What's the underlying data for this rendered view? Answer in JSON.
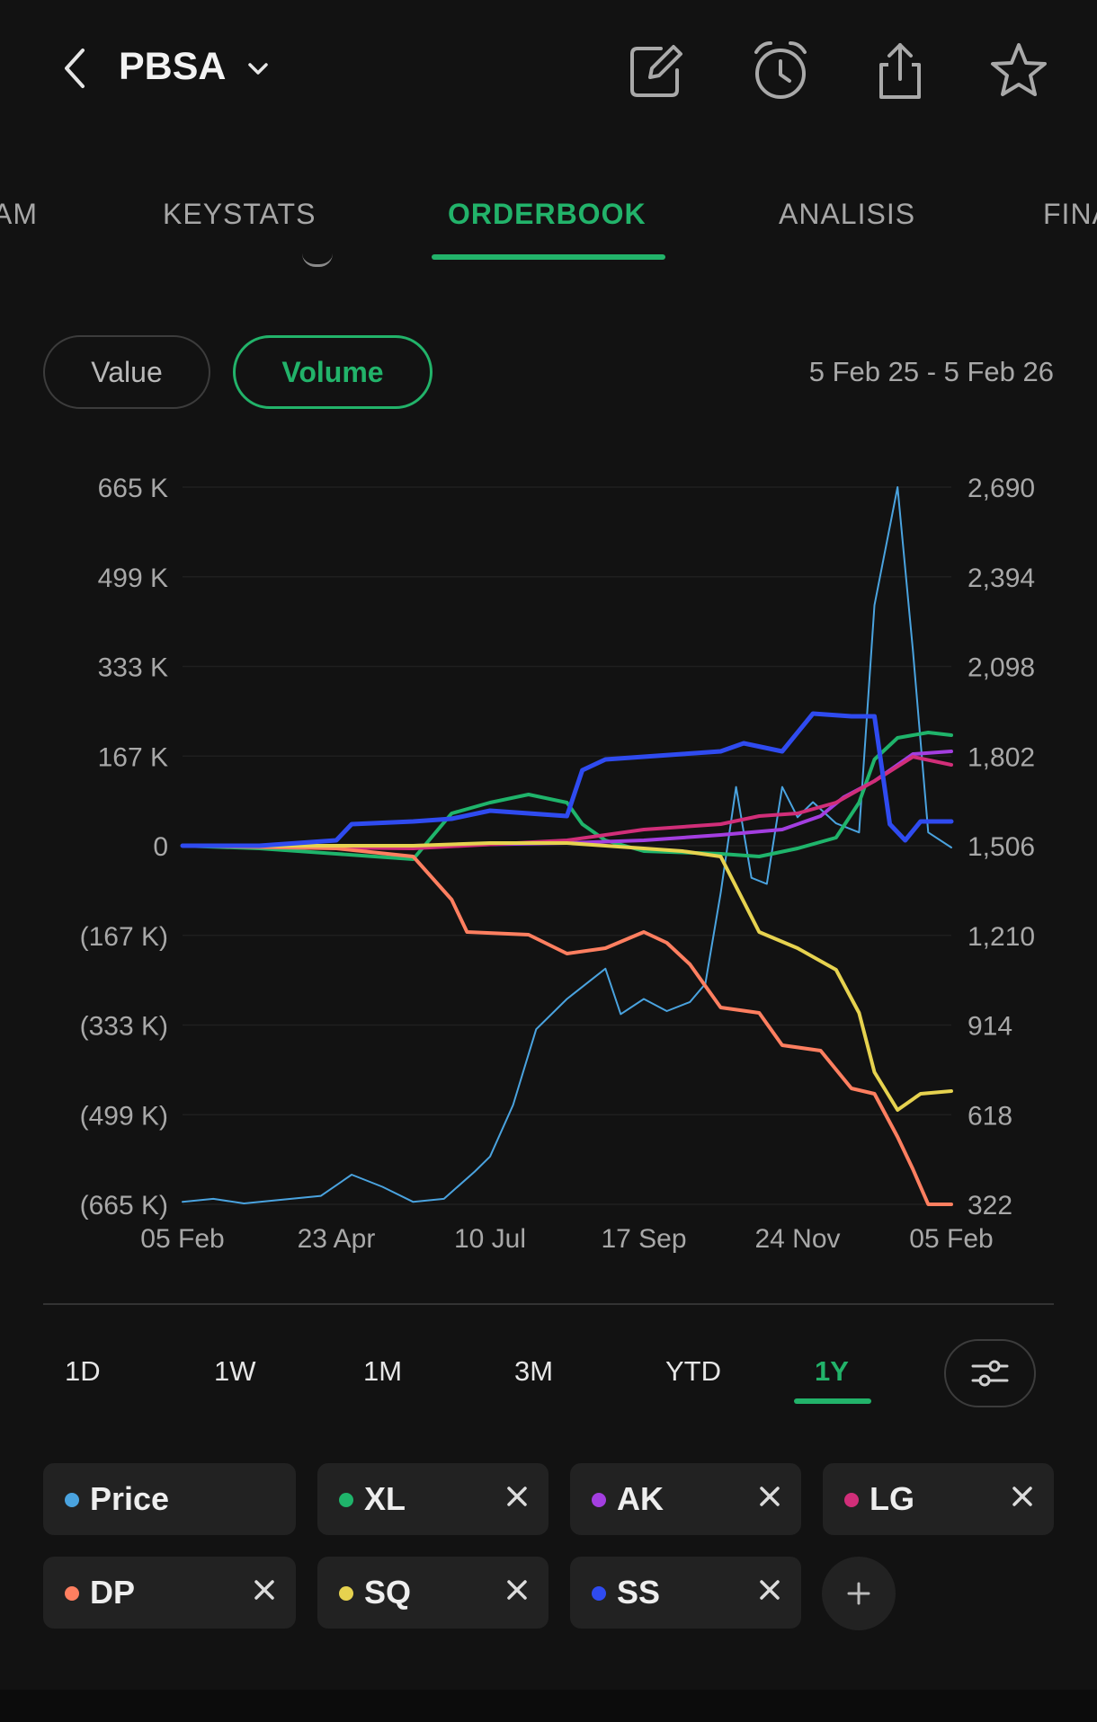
{
  "header": {
    "title": "PBSA",
    "icons": [
      "chevron-left-icon",
      "chevron-down-icon",
      "edit-icon",
      "alarm-icon",
      "share-icon",
      "star-icon"
    ]
  },
  "tabs": [
    {
      "label": "AM",
      "active": false
    },
    {
      "label": "KEYSTATS",
      "active": false
    },
    {
      "label": "ORDERBOOK",
      "active": true
    },
    {
      "label": "ANALISIS",
      "active": false
    },
    {
      "label": "FINA",
      "active": false
    }
  ],
  "toggle": {
    "value_label": "Value",
    "volume_label": "Volume",
    "selected": "Volume"
  },
  "date_range": "5 Feb 25 - 5 Feb 26",
  "ranges": [
    {
      "label": "1D",
      "active": false
    },
    {
      "label": "1W",
      "active": false
    },
    {
      "label": "1M",
      "active": false
    },
    {
      "label": "3M",
      "active": false
    },
    {
      "label": "YTD",
      "active": false
    },
    {
      "label": "1Y",
      "active": true
    }
  ],
  "legend": [
    {
      "label": "Price",
      "color": "#4aa3df",
      "removable": false
    },
    {
      "label": "XL",
      "color": "#1fb46b",
      "removable": true
    },
    {
      "label": "AK",
      "color": "#a33ee0",
      "removable": true
    },
    {
      "label": "LG",
      "color": "#d12e79",
      "removable": true
    },
    {
      "label": "DP",
      "color": "#ff7f60",
      "removable": true
    },
    {
      "label": "SQ",
      "color": "#e6d24f",
      "removable": true
    },
    {
      "label": "SS",
      "color": "#2f4bf0",
      "removable": true
    }
  ],
  "chart_data": {
    "type": "line",
    "x_ticks": [
      "05 Feb",
      "23 Apr",
      "10 Jul",
      "17 Sep",
      "24 Nov",
      "05 Feb"
    ],
    "left_ticks": [
      "665 K",
      "499 K",
      "333 K",
      "167 K",
      "0",
      "(167 K)",
      "(333 K)",
      "(499 K)",
      "(665 K)"
    ],
    "right_ticks": [
      "2,690",
      "2,394",
      "2,098",
      "1,802",
      "1,506",
      "1,210",
      "914",
      "618",
      "322"
    ],
    "ylim_left": [
      -665,
      665
    ],
    "ylim_right": [
      322,
      2690
    ],
    "left_unit": "K",
    "grid": true,
    "series": [
      {
        "name": "Price",
        "axis": "right",
        "color": "#4aa3df",
        "width": 2,
        "points": [
          [
            0,
            330
          ],
          [
            0.04,
            340
          ],
          [
            0.08,
            325
          ],
          [
            0.12,
            335
          ],
          [
            0.18,
            350
          ],
          [
            0.22,
            420
          ],
          [
            0.26,
            380
          ],
          [
            0.3,
            330
          ],
          [
            0.34,
            340
          ],
          [
            0.38,
            430
          ],
          [
            0.4,
            480
          ],
          [
            0.43,
            650
          ],
          [
            0.46,
            900
          ],
          [
            0.5,
            1000
          ],
          [
            0.55,
            1100
          ],
          [
            0.57,
            950
          ],
          [
            0.6,
            1000
          ],
          [
            0.63,
            960
          ],
          [
            0.66,
            990
          ],
          [
            0.68,
            1050
          ],
          [
            0.7,
            1350
          ],
          [
            0.72,
            1700
          ],
          [
            0.74,
            1400
          ],
          [
            0.76,
            1380
          ],
          [
            0.78,
            1700
          ],
          [
            0.8,
            1600
          ],
          [
            0.82,
            1650
          ],
          [
            0.85,
            1580
          ],
          [
            0.88,
            1550
          ],
          [
            0.9,
            2300
          ],
          [
            0.93,
            2690
          ],
          [
            0.95,
            2150
          ],
          [
            0.97,
            1550
          ],
          [
            1.0,
            1500
          ]
        ]
      },
      {
        "name": "XL",
        "axis": "left",
        "color": "#1fb46b",
        "width": 4,
        "points": [
          [
            0,
            0
          ],
          [
            0.1,
            -5
          ],
          [
            0.2,
            -15
          ],
          [
            0.3,
            -25
          ],
          [
            0.35,
            60
          ],
          [
            0.4,
            80
          ],
          [
            0.45,
            95
          ],
          [
            0.5,
            80
          ],
          [
            0.52,
            40
          ],
          [
            0.55,
            10
          ],
          [
            0.6,
            -10
          ],
          [
            0.7,
            -15
          ],
          [
            0.75,
            -20
          ],
          [
            0.8,
            -5
          ],
          [
            0.85,
            15
          ],
          [
            0.88,
            80
          ],
          [
            0.9,
            160
          ],
          [
            0.93,
            200
          ],
          [
            0.97,
            210
          ],
          [
            1.0,
            205
          ]
        ]
      },
      {
        "name": "AK",
        "axis": "left",
        "color": "#a33ee0",
        "width": 4,
        "points": [
          [
            0,
            0
          ],
          [
            0.3,
            0
          ],
          [
            0.5,
            5
          ],
          [
            0.6,
            10
          ],
          [
            0.7,
            20
          ],
          [
            0.78,
            30
          ],
          [
            0.83,
            55
          ],
          [
            0.86,
            90
          ],
          [
            0.9,
            120
          ],
          [
            0.95,
            170
          ],
          [
            1.0,
            175
          ]
        ]
      },
      {
        "name": "LG",
        "axis": "left",
        "color": "#d12e79",
        "width": 4,
        "points": [
          [
            0,
            0
          ],
          [
            0.3,
            -5
          ],
          [
            0.5,
            10
          ],
          [
            0.6,
            30
          ],
          [
            0.7,
            40
          ],
          [
            0.75,
            55
          ],
          [
            0.8,
            60
          ],
          [
            0.85,
            80
          ],
          [
            0.9,
            120
          ],
          [
            0.95,
            165
          ],
          [
            1.0,
            150
          ]
        ]
      },
      {
        "name": "DP",
        "axis": "left",
        "color": "#ff7f60",
        "width": 4,
        "points": [
          [
            0,
            0
          ],
          [
            0.2,
            -5
          ],
          [
            0.3,
            -20
          ],
          [
            0.35,
            -100
          ],
          [
            0.37,
            -160
          ],
          [
            0.45,
            -165
          ],
          [
            0.5,
            -200
          ],
          [
            0.55,
            -190
          ],
          [
            0.6,
            -160
          ],
          [
            0.63,
            -180
          ],
          [
            0.66,
            -220
          ],
          [
            0.7,
            -300
          ],
          [
            0.75,
            -310
          ],
          [
            0.78,
            -370
          ],
          [
            0.83,
            -380
          ],
          [
            0.87,
            -450
          ],
          [
            0.9,
            -460
          ],
          [
            0.93,
            -540
          ],
          [
            0.95,
            -600
          ],
          [
            0.97,
            -665
          ],
          [
            1.0,
            -665
          ]
        ]
      },
      {
        "name": "SQ",
        "axis": "left",
        "color": "#e6d24f",
        "width": 4,
        "points": [
          [
            0,
            0
          ],
          [
            0.3,
            0
          ],
          [
            0.4,
            5
          ],
          [
            0.5,
            5
          ],
          [
            0.55,
            0
          ],
          [
            0.6,
            -5
          ],
          [
            0.65,
            -10
          ],
          [
            0.7,
            -20
          ],
          [
            0.75,
            -160
          ],
          [
            0.8,
            -190
          ],
          [
            0.85,
            -230
          ],
          [
            0.88,
            -310
          ],
          [
            0.9,
            -420
          ],
          [
            0.93,
            -490
          ],
          [
            0.96,
            -460
          ],
          [
            1.0,
            -455
          ]
        ]
      },
      {
        "name": "SS",
        "axis": "left",
        "color": "#2f4bf0",
        "width": 5,
        "points": [
          [
            0,
            0
          ],
          [
            0.1,
            0
          ],
          [
            0.2,
            10
          ],
          [
            0.22,
            40
          ],
          [
            0.3,
            45
          ],
          [
            0.35,
            50
          ],
          [
            0.4,
            65
          ],
          [
            0.45,
            60
          ],
          [
            0.5,
            55
          ],
          [
            0.52,
            140
          ],
          [
            0.55,
            160
          ],
          [
            0.6,
            165
          ],
          [
            0.65,
            170
          ],
          [
            0.7,
            175
          ],
          [
            0.73,
            190
          ],
          [
            0.78,
            175
          ],
          [
            0.82,
            245
          ],
          [
            0.87,
            240
          ],
          [
            0.9,
            240
          ],
          [
            0.92,
            40
          ],
          [
            0.94,
            10
          ],
          [
            0.96,
            45
          ],
          [
            1.0,
            45
          ]
        ]
      }
    ]
  }
}
